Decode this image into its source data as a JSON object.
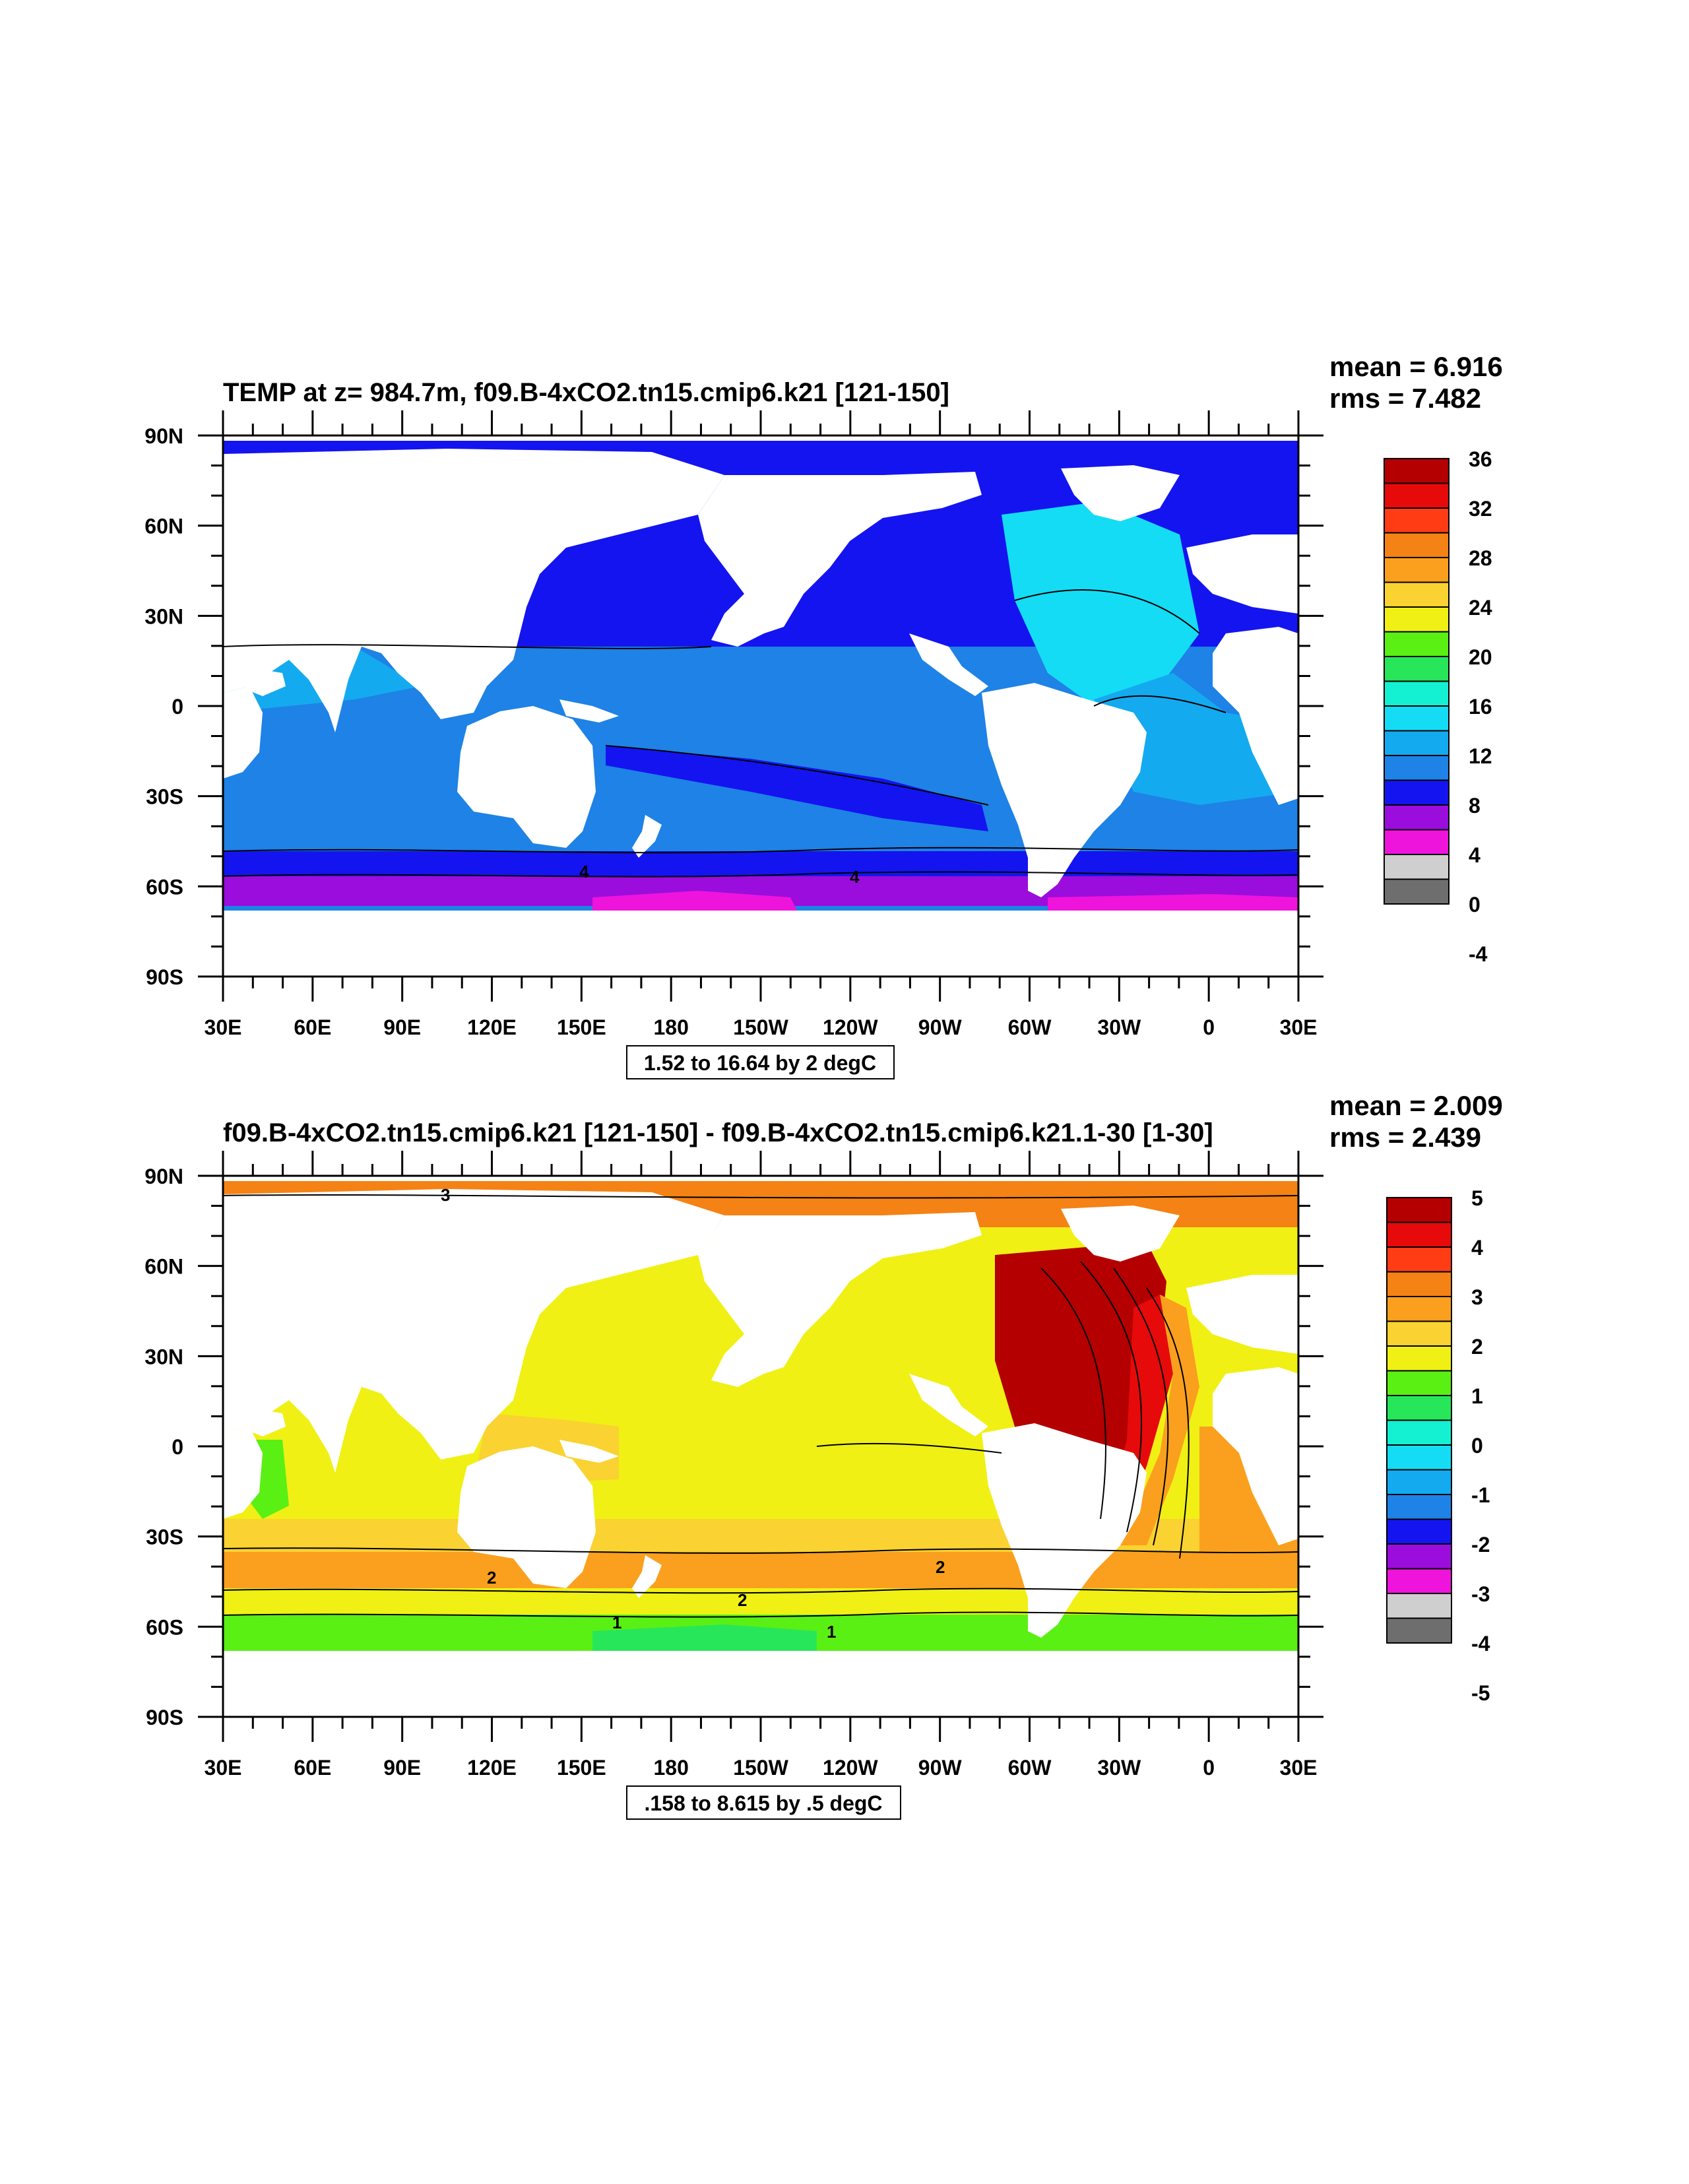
{
  "colors": {
    "land": "#ffffff",
    "panel1_palette": [
      "#6e6e6e",
      "#cfcfcf",
      "#ee14dc",
      "#9a0ddd",
      "#1414f0",
      "#1e82e6",
      "#14aaf0",
      "#14dcf5",
      "#14f0d2",
      "#28e65a",
      "#5af014",
      "#f0f014",
      "#fad232",
      "#faa01e",
      "#f58214",
      "#ff3c14",
      "#e60a0a",
      "#b40000"
    ],
    "panel2_palette": [
      "#6e6e6e",
      "#cfcfcf",
      "#ee14dc",
      "#9a0ddd",
      "#1414f0",
      "#1e82e6",
      "#14aaf0",
      "#14dcf5",
      "#14f0d2",
      "#28e65a",
      "#5af014",
      "#f0f014",
      "#fad232",
      "#faa01e",
      "#f58214",
      "#ff3c14",
      "#e60a0a",
      "#b40000"
    ]
  },
  "panels": [
    {
      "title": "TEMP at z= 984.7m, f09.B-4xCO2.tn15.cmip6.k21 [121-150]",
      "mean": "mean = 6.916",
      "rms": "rms = 7.482",
      "info": "1.52 to 16.64 by 2 degC",
      "colorbar_labels": [
        "36",
        "32",
        "28",
        "24",
        "20",
        "16",
        "12",
        "8",
        "4",
        "0",
        "-4"
      ],
      "contour_labels": [
        "4",
        "4"
      ]
    },
    {
      "title": "f09.B-4xCO2.tn15.cmip6.k21 [121-150] - f09.B-4xCO2.tn15.cmip6.k21.1-30 [1-30]",
      "mean": "mean = 2.009",
      "rms": "rms = 2.439",
      "info": ".158 to 8.615 by .5 degC",
      "colorbar_labels": [
        "5",
        "4",
        "3",
        "2",
        "1",
        "0",
        "-1",
        "-2",
        "-3",
        "-4",
        "-5"
      ],
      "contour_labels": [
        "3",
        "2",
        "2",
        "2",
        "1",
        "1"
      ]
    }
  ],
  "axes": {
    "lat_labels": [
      "90N",
      "60N",
      "30N",
      "0",
      "30S",
      "60S",
      "90S"
    ],
    "lon_labels": [
      "30E",
      "60E",
      "90E",
      "120E",
      "150E",
      "180",
      "150W",
      "120W",
      "90W",
      "60W",
      "30W",
      "0",
      "30E"
    ]
  }
}
